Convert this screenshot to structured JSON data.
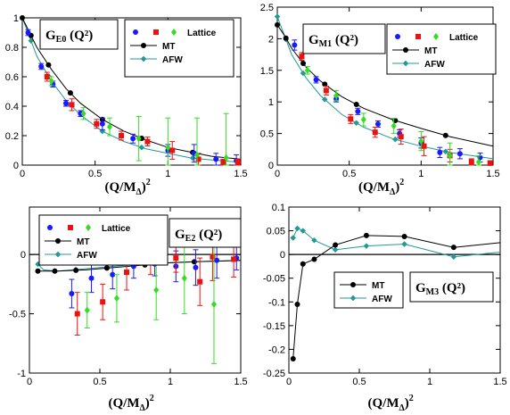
{
  "chart_data": [
    {
      "id": "GE0",
      "type": "scatter",
      "title_main": "G",
      "title_sub": "E0",
      "title_args": " (Q²)",
      "xlabel": "(Q/M",
      "xlabel_sub": "Δ",
      "xlabel_tail": ")",
      "xlabel_sup": "2",
      "xlim": [
        0,
        1.5
      ],
      "ylim": [
        0,
        1
      ],
      "xticks": [
        "0",
        "0.5",
        "1",
        "1.5"
      ],
      "yticks": [
        "0",
        "0.2",
        "0.4",
        "0.6",
        "0.8",
        "1"
      ],
      "legend": {
        "lattice": "Lattice",
        "mt": "MT",
        "afw": "AFW"
      },
      "colors": {
        "blue": "#1a1aff",
        "red": "#ee1111",
        "green": "#33dd22",
        "mt": "#000000",
        "afw": "#1f9a95"
      },
      "lattice_blue": [
        {
          "x": 0.04,
          "y": 0.9,
          "e": 0.02
        },
        {
          "x": 0.13,
          "y": 0.67,
          "e": 0.02
        },
        {
          "x": 0.21,
          "y": 0.55,
          "e": 0.02
        },
        {
          "x": 0.3,
          "y": 0.42,
          "e": 0.02
        },
        {
          "x": 0.4,
          "y": 0.35,
          "e": 0.02
        },
        {
          "x": 0.55,
          "y": 0.28,
          "e": 0.04
        },
        {
          "x": 0.76,
          "y": 0.18,
          "e": 0.03
        },
        {
          "x": 1.0,
          "y": 0.1,
          "e": 0.04
        },
        {
          "x": 1.18,
          "y": 0.08,
          "e": 0.06
        },
        {
          "x": 1.33,
          "y": 0.04,
          "e": 0.04
        },
        {
          "x": 1.47,
          "y": 0.03,
          "e": 0.04
        }
      ],
      "lattice_red": [
        {
          "x": 0.17,
          "y": 0.6,
          "e": 0.03
        },
        {
          "x": 0.34,
          "y": 0.41,
          "e": 0.04
        },
        {
          "x": 0.51,
          "y": 0.28,
          "e": 0.03
        },
        {
          "x": 0.68,
          "y": 0.2,
          "e": 0.03
        },
        {
          "x": 0.86,
          "y": 0.16,
          "e": 0.03
        },
        {
          "x": 1.03,
          "y": 0.1,
          "e": 0.06
        },
        {
          "x": 1.21,
          "y": 0.04,
          "e": 0.04
        },
        {
          "x": 1.38,
          "y": 0.02,
          "e": 0.02
        },
        {
          "x": 1.48,
          "y": 0.02,
          "e": 0.02
        }
      ],
      "lattice_green": [
        {
          "x": 0.2,
          "y": 0.57,
          "e": 0.03
        },
        {
          "x": 0.42,
          "y": 0.35,
          "e": 0.04
        },
        {
          "x": 0.6,
          "y": 0.26,
          "e": 0.06
        },
        {
          "x": 0.8,
          "y": 0.18,
          "e": 0.15
        },
        {
          "x": 1.0,
          "y": 0.12,
          "e": 0.2
        },
        {
          "x": 1.2,
          "y": 0.07,
          "e": 0.25
        },
        {
          "x": 1.4,
          "y": 0.05,
          "e": 0.3
        }
      ],
      "mt": {
        "x": [
          0,
          0.05,
          0.1,
          0.2,
          0.3,
          0.4,
          0.55,
          0.7,
          0.85,
          1.0,
          1.15,
          1.3,
          1.5
        ],
        "y": [
          1.0,
          0.9,
          0.8,
          0.65,
          0.52,
          0.42,
          0.31,
          0.23,
          0.17,
          0.12,
          0.09,
          0.06,
          0.04
        ],
        "markers_x": [
          0,
          0.06,
          0.18,
          0.33,
          0.55,
          0.82,
          1.17
        ]
      },
      "afw": {
        "x": [
          0,
          0.05,
          0.1,
          0.2,
          0.3,
          0.4,
          0.55,
          0.7,
          0.85,
          1.0,
          1.15,
          1.3,
          1.5
        ],
        "y": [
          1.0,
          0.87,
          0.74,
          0.57,
          0.44,
          0.34,
          0.23,
          0.16,
          0.11,
          0.08,
          0.05,
          0.035,
          0.02
        ],
        "markers_x": [
          0,
          0.06,
          0.18,
          0.33,
          0.55,
          0.82,
          1.17
        ]
      }
    },
    {
      "id": "GM1",
      "type": "scatter",
      "title_main": "G",
      "title_sub": "M1",
      "title_args": " (Q²)",
      "xlabel": "(Q/M",
      "xlabel_sub": "Δ",
      "xlabel_tail": ")",
      "xlabel_sup": "2",
      "xlim": [
        0,
        1.5
      ],
      "ylim": [
        0,
        2.5
      ],
      "xticks": [
        "0",
        "0.5",
        "1",
        "1.5"
      ],
      "yticks": [
        "0",
        "0.5",
        "1",
        "1.5",
        "2",
        "2.5"
      ],
      "legend": {
        "lattice": "Lattice",
        "mt": "MT",
        "afw": "AFW"
      },
      "colors": {
        "blue": "#1a1aff",
        "red": "#ee1111",
        "green": "#33dd22",
        "mt": "#000000",
        "afw": "#1f9a95"
      },
      "lattice_blue": [
        {
          "x": 0.12,
          "y": 1.9,
          "e": 0.08
        },
        {
          "x": 0.27,
          "y": 1.35,
          "e": 0.05
        },
        {
          "x": 0.41,
          "y": 1.05,
          "e": 0.05
        },
        {
          "x": 0.56,
          "y": 0.85,
          "e": 0.05
        },
        {
          "x": 0.7,
          "y": 0.65,
          "e": 0.05
        },
        {
          "x": 0.85,
          "y": 0.5,
          "e": 0.06
        },
        {
          "x": 1.0,
          "y": 0.35,
          "e": 0.08
        },
        {
          "x": 1.13,
          "y": 0.2,
          "e": 0.08
        },
        {
          "x": 1.27,
          "y": 0.18,
          "e": 0.08
        },
        {
          "x": 1.41,
          "y": 0.12,
          "e": 0.07
        }
      ],
      "lattice_red": [
        {
          "x": 0.17,
          "y": 1.72,
          "e": 0.06
        },
        {
          "x": 0.34,
          "y": 1.18,
          "e": 0.07
        },
        {
          "x": 0.51,
          "y": 0.73,
          "e": 0.07
        },
        {
          "x": 0.68,
          "y": 0.52,
          "e": 0.08
        },
        {
          "x": 0.86,
          "y": 0.45,
          "e": 0.12
        },
        {
          "x": 1.02,
          "y": 0.3,
          "e": 0.15
        },
        {
          "x": 1.2,
          "y": 0.15,
          "e": 0.1
        },
        {
          "x": 1.35,
          "y": 0.05,
          "e": 0.05
        },
        {
          "x": 1.48,
          "y": 0.03,
          "e": 0.04
        }
      ],
      "lattice_green": [
        {
          "x": 0.21,
          "y": 1.5,
          "e": 0.06
        },
        {
          "x": 0.41,
          "y": 1.1,
          "e": 0.08
        },
        {
          "x": 0.6,
          "y": 0.72,
          "e": 0.1
        },
        {
          "x": 0.81,
          "y": 0.62,
          "e": 0.12
        },
        {
          "x": 1.0,
          "y": 0.38,
          "e": 0.15
        },
        {
          "x": 1.2,
          "y": 0.15,
          "e": 0.2
        },
        {
          "x": 1.4,
          "y": 0.05,
          "e": 0.1
        }
      ],
      "mt": {
        "x": [
          0,
          0.05,
          0.1,
          0.2,
          0.3,
          0.45,
          0.6,
          0.8,
          1.0,
          1.2,
          1.5
        ],
        "y": [
          2.22,
          2.05,
          1.85,
          1.55,
          1.33,
          1.08,
          0.9,
          0.72,
          0.58,
          0.45,
          0.3
        ],
        "markers_x": [
          0,
          0.06,
          0.18,
          0.33,
          0.55,
          0.82,
          1.17
        ]
      },
      "afw": {
        "x": [
          0,
          0.05,
          0.1,
          0.2,
          0.3,
          0.45,
          0.6,
          0.8,
          1.0,
          1.2,
          1.5
        ],
        "y": [
          2.35,
          2.05,
          1.75,
          1.38,
          1.1,
          0.8,
          0.6,
          0.42,
          0.3,
          0.2,
          0.1
        ],
        "markers_x": [
          0,
          0.06,
          0.18,
          0.33,
          0.55,
          0.82,
          1.17
        ]
      }
    },
    {
      "id": "GE2",
      "type": "scatter",
      "title_main": "G",
      "title_sub": "E2",
      "title_args": " (Q²)",
      "xlabel": "(Q/M",
      "xlabel_sub": "Δ",
      "xlabel_tail": ")",
      "xlabel_sup": "2",
      "xlim": [
        0,
        1.5
      ],
      "ylim": [
        -1,
        0.4
      ],
      "xticks": [
        "0",
        "0.5",
        "1",
        "1.5"
      ],
      "yticks": [
        "-1",
        "-0.5",
        "0"
      ],
      "legend": {
        "lattice": "Lattice",
        "mt": "MT",
        "afw": "AFW"
      },
      "colors": {
        "blue": "#1a1aff",
        "red": "#ee1111",
        "green": "#33dd22",
        "mt": "#000000",
        "afw": "#1f9a95"
      },
      "lattice_blue": [
        {
          "x": 0.3,
          "y": -0.33,
          "e": 0.12
        },
        {
          "x": 0.44,
          "y": -0.2,
          "e": 0.12
        },
        {
          "x": 0.59,
          "y": -0.17,
          "e": 0.12
        },
        {
          "x": 0.74,
          "y": -0.1,
          "e": 0.1
        },
        {
          "x": 0.89,
          "y": -0.08,
          "e": 0.1
        },
        {
          "x": 1.04,
          "y": -0.1,
          "e": 0.13
        },
        {
          "x": 1.18,
          "y": -0.11,
          "e": 0.15
        },
        {
          "x": 1.33,
          "y": -0.05,
          "e": 0.15
        },
        {
          "x": 1.47,
          "y": -0.03,
          "e": 0.1
        }
      ],
      "lattice_red": [
        {
          "x": 0.34,
          "y": -0.5,
          "e": 0.18
        },
        {
          "x": 0.52,
          "y": -0.4,
          "e": 0.15
        },
        {
          "x": 0.69,
          "y": -0.15,
          "e": 0.15
        },
        {
          "x": 0.86,
          "y": -0.07,
          "e": 0.1
        },
        {
          "x": 1.04,
          "y": -0.03,
          "e": 0.12
        },
        {
          "x": 1.21,
          "y": -0.23,
          "e": 0.2
        },
        {
          "x": 1.3,
          "y": -0.02,
          "e": 0.2
        },
        {
          "x": 1.45,
          "y": -0.04,
          "e": 0.15
        }
      ],
      "lattice_green": [
        {
          "x": 0.41,
          "y": -0.47,
          "e": 0.15
        },
        {
          "x": 0.62,
          "y": -0.37,
          "e": 0.2
        },
        {
          "x": 0.9,
          "y": -0.3,
          "e": 0.25
        },
        {
          "x": 1.1,
          "y": -0.2,
          "e": 0.3
        },
        {
          "x": 1.31,
          "y": -0.42,
          "e": 0.5
        }
      ],
      "mt": {
        "x": [
          0.05,
          0.2,
          0.4,
          0.6,
          0.8,
          1.0,
          1.2,
          1.5
        ],
        "y": [
          -0.14,
          -0.14,
          -0.13,
          -0.11,
          -0.09,
          -0.07,
          -0.06,
          -0.05
        ],
        "markers_x": [
          0.06,
          0.18,
          0.33,
          0.55,
          0.82,
          1.17
        ]
      },
      "afw": {
        "x": [
          0.05,
          0.1,
          0.2,
          0.4,
          0.6,
          0.8,
          1.0,
          1.2,
          1.5
        ],
        "y": [
          -0.07,
          -0.13,
          -0.14,
          -0.12,
          -0.1,
          -0.08,
          -0.07,
          -0.06,
          -0.05
        ],
        "markers_x": [
          0.06,
          0.18,
          0.33,
          0.55,
          0.82,
          1.17
        ]
      }
    },
    {
      "id": "GM3",
      "type": "line",
      "title_main": "G",
      "title_sub": "M3",
      "title_args": " (Q²)",
      "xlabel": "(Q/M",
      "xlabel_sub": "Δ",
      "xlabel_tail": ")",
      "xlabel_sup": "2",
      "xlim": [
        0,
        1.5
      ],
      "ylim": [
        -0.25,
        0.1
      ],
      "xticks": [
        "0",
        "0.5",
        "1",
        "1.5"
      ],
      "yticks": [
        "-0.25",
        "-0.2",
        "-0.15",
        "-0.1",
        "-0.05",
        "0",
        "0.05",
        "0.1"
      ],
      "legend": {
        "mt": "MT",
        "afw": "AFW"
      },
      "colors": {
        "mt": "#000000",
        "afw": "#1f9a95"
      },
      "mt": {
        "x": [
          0.03,
          0.06,
          0.1,
          0.18,
          0.33,
          0.55,
          0.82,
          1.17,
          1.5
        ],
        "y": [
          -0.22,
          -0.105,
          -0.02,
          -0.01,
          0.02,
          0.04,
          0.038,
          0.015,
          0.025
        ],
        "markers_x": [
          0.03,
          0.06,
          0.1,
          0.18,
          0.33,
          0.55,
          0.82,
          1.17
        ]
      },
      "afw": {
        "x": [
          0.03,
          0.06,
          0.1,
          0.14,
          0.18,
          0.33,
          0.55,
          0.82,
          1.17,
          1.5
        ],
        "y": [
          0.035,
          0.055,
          0.05,
          0.04,
          0.03,
          0.01,
          0.018,
          0.022,
          -0.005,
          0.005
        ],
        "markers_x": [
          0.03,
          0.06,
          0.1,
          0.18,
          0.33,
          0.55,
          0.82,
          1.17
        ]
      }
    }
  ]
}
